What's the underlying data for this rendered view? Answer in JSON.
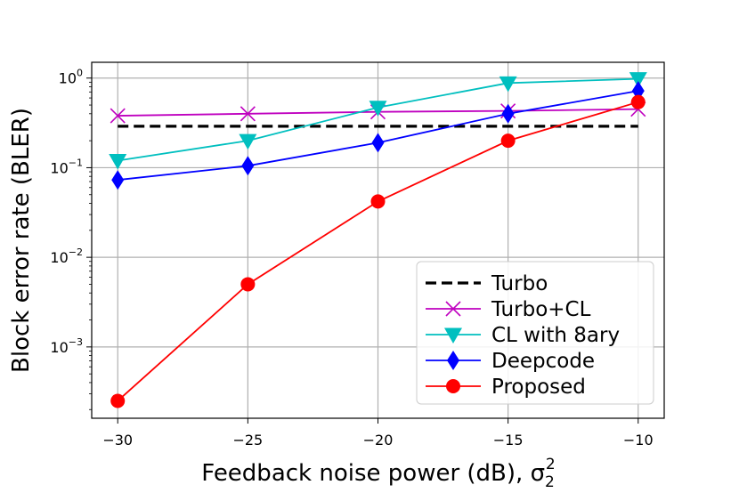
{
  "chart_data": {
    "type": "line",
    "xlabel": "Feedback noise power (dB), σ",
    "xlabel_sub": "2",
    "xlabel_sup": "2",
    "ylabel": "Block error rate (BLER)",
    "x_ticks": [
      -30,
      -25,
      -20,
      -15,
      -10
    ],
    "x_tick_labels": [
      "−30",
      "−25",
      "−20",
      "−15",
      "−10"
    ],
    "xlim": [
      -31,
      -9
    ],
    "y_scale": "log",
    "ylim": [
      0.00016,
      1.5
    ],
    "y_ticks": [
      {
        "value": 1,
        "base": "10",
        "exp": "0"
      },
      {
        "value": 0.1,
        "base": "10",
        "exp": "−1"
      },
      {
        "value": 0.01,
        "base": "10",
        "exp": "−2"
      },
      {
        "value": 0.001,
        "base": "10",
        "exp": "−3"
      }
    ],
    "grid": true,
    "legend_position": "bottom-right",
    "series": [
      {
        "name": "Turbo",
        "color": "#000000",
        "style": "dashed",
        "marker": "none",
        "x": [
          -30,
          -10
        ],
        "values": [
          0.29,
          0.29
        ]
      },
      {
        "name": "Turbo+CL",
        "color": "#bf00bf",
        "style": "solid",
        "marker": "x",
        "x": [
          -30,
          -25,
          -20,
          -15,
          -10
        ],
        "values": [
          0.38,
          0.4,
          0.42,
          0.43,
          0.45
        ]
      },
      {
        "name": "CL with 8ary",
        "color": "#00bfbf",
        "style": "solid",
        "marker": "triangle-down",
        "x": [
          -30,
          -25,
          -20,
          -15,
          -10
        ],
        "values": [
          0.12,
          0.2,
          0.47,
          0.88,
          0.98
        ]
      },
      {
        "name": "Deepcode",
        "color": "#0000ff",
        "style": "solid",
        "marker": "diamond",
        "x": [
          -30,
          -25,
          -20,
          -15,
          -10
        ],
        "values": [
          0.073,
          0.105,
          0.19,
          0.4,
          0.72
        ]
      },
      {
        "name": "Proposed",
        "color": "#ff0000",
        "style": "solid",
        "marker": "circle",
        "x": [
          -30,
          -25,
          -20,
          -15,
          -10
        ],
        "values": [
          0.00025,
          0.005,
          0.042,
          0.2,
          0.54
        ]
      }
    ]
  }
}
